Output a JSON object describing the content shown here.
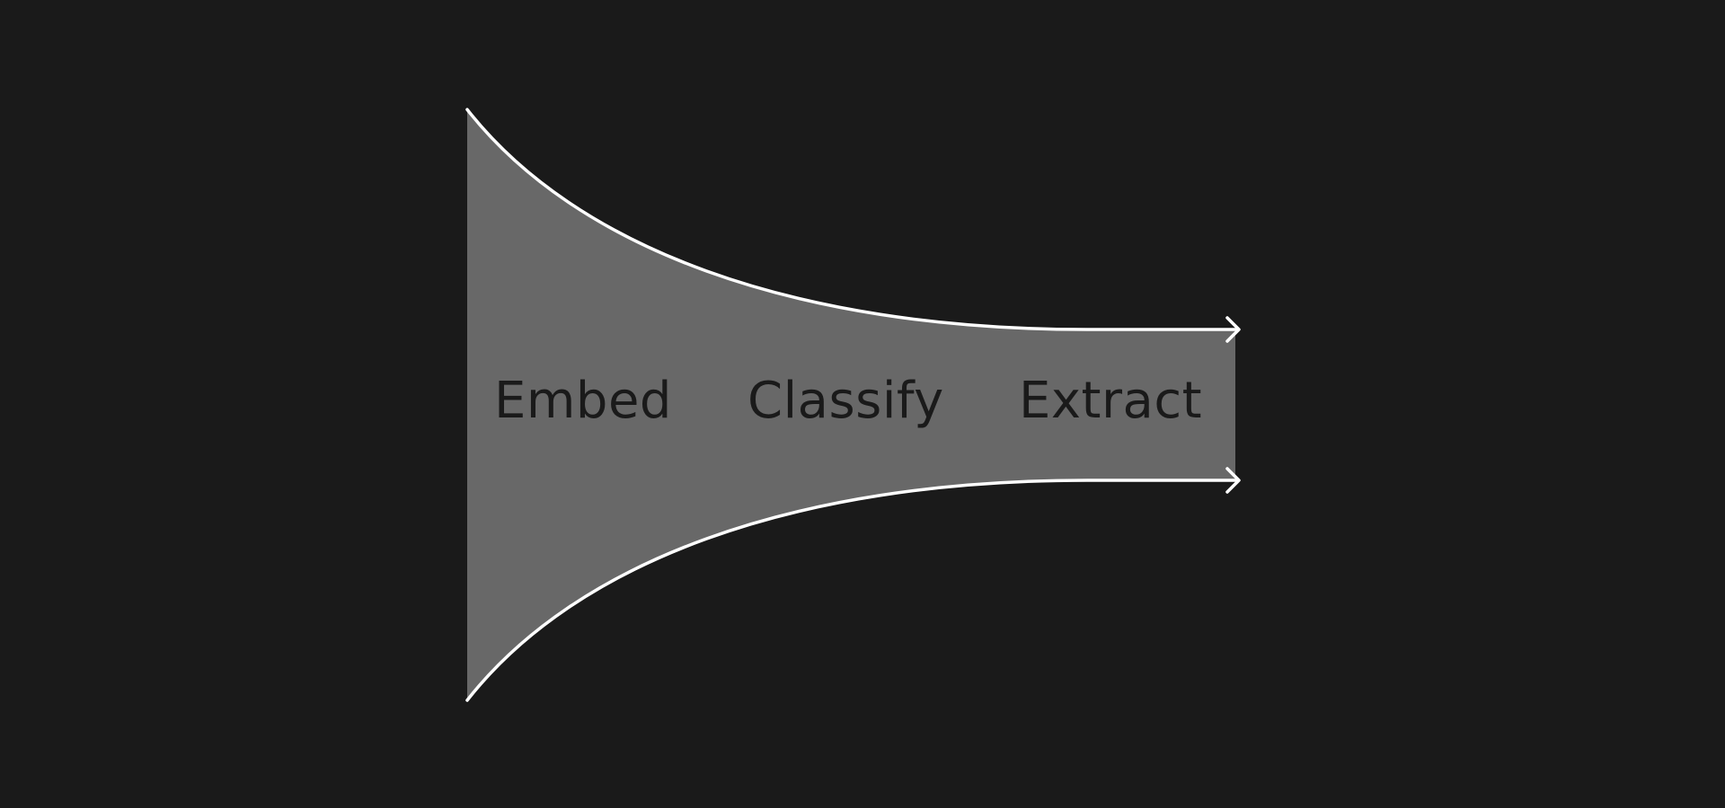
{
  "diagram": {
    "stages": [
      {
        "label": "Embed"
      },
      {
        "label": "Classify"
      },
      {
        "label": "Extract"
      }
    ],
    "colors": {
      "background": "#1a1a1a",
      "funnel_fill": "#686868",
      "outline": "#ffffff",
      "label_text": "#1a1a1a"
    },
    "icons": {
      "top_arrow": "arrow-right-icon",
      "bottom_arrow": "arrow-right-icon"
    }
  }
}
